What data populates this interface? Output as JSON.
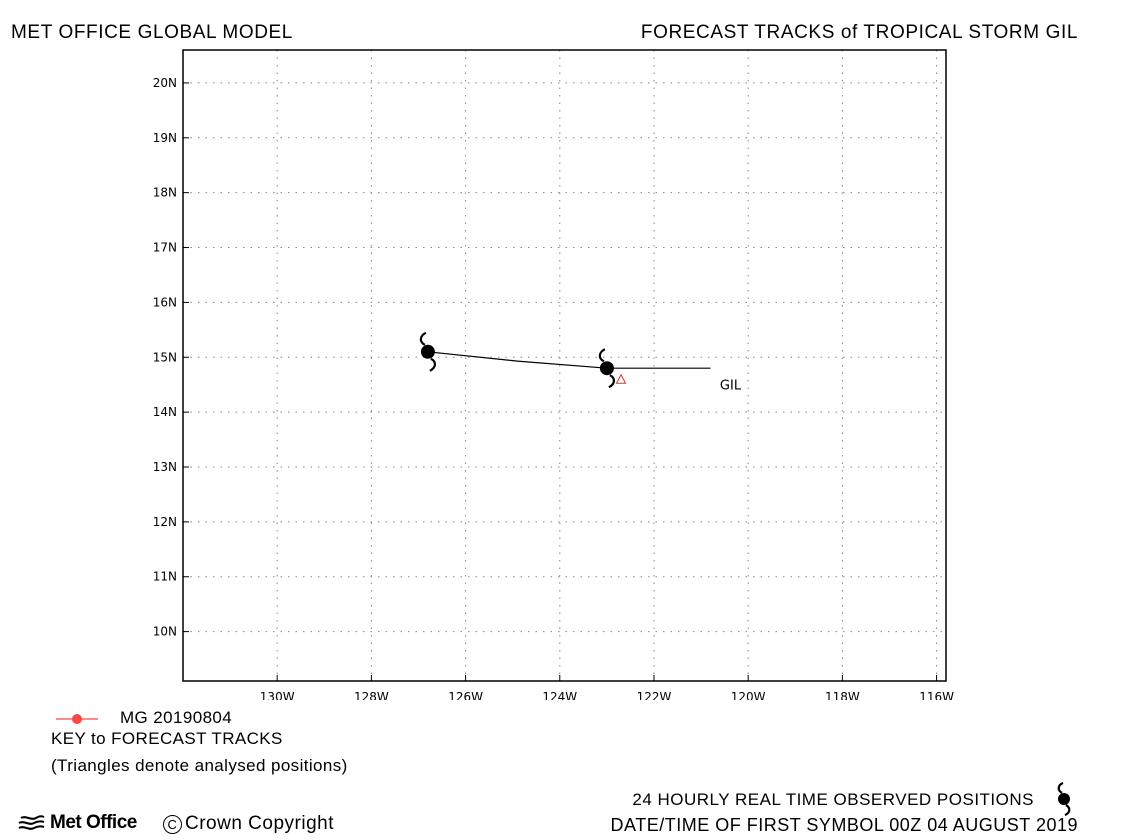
{
  "header": {
    "left_title": "MET OFFICE GLOBAL MODEL",
    "right_title": "FORECAST TRACKS of TROPICAL STORM GIL"
  },
  "chart_data": {
    "type": "line",
    "title": "FORECAST TRACKS of TROPICAL STORM GIL",
    "xlim": [
      -132,
      -115.8
    ],
    "ylim": [
      9.1,
      20.6
    ],
    "grid": true,
    "x_ticks": [
      "130W",
      "128W",
      "126W",
      "124W",
      "122W",
      "120W",
      "118W",
      "116W"
    ],
    "x_tick_values": [
      -130,
      -128,
      -126,
      -124,
      -122,
      -120,
      -118,
      -116
    ],
    "y_ticks": [
      "10N",
      "11N",
      "12N",
      "13N",
      "14N",
      "15N",
      "16N",
      "17N",
      "18N",
      "19N",
      "20N"
    ],
    "y_tick_values": [
      10,
      11,
      12,
      13,
      14,
      15,
      16,
      17,
      18,
      19,
      20
    ],
    "series": [
      {
        "name": "MG 20190804",
        "color": "#000000",
        "points": [
          {
            "lon": -126.8,
            "lat": 15.1
          },
          {
            "lon": -124.9,
            "lat": 14.93
          },
          {
            "lon": -123.0,
            "lat": 14.8
          },
          {
            "lon": -120.8,
            "lat": 14.8
          }
        ]
      }
    ],
    "observed_positions": [
      {
        "lon": -126.8,
        "lat": 15.1
      },
      {
        "lon": -123.0,
        "lat": 14.8
      }
    ],
    "analysed_positions": [
      {
        "lon": -122.7,
        "lat": 14.6
      }
    ],
    "annotations": [
      {
        "text": "GIL",
        "lon": -120.6,
        "lat": 14.5
      }
    ]
  },
  "legend": {
    "series_label": "MG 20190804",
    "series_color": "#ff4444",
    "title": "KEY to FORECAST TRACKS",
    "note": "(Triangles denote analysed positions)"
  },
  "footer": {
    "observed_text": "24 HOURLY REAL TIME OBSERVED POSITIONS",
    "date_text": "DATE/TIME OF FIRST SYMBOL 00Z 04 AUGUST 2019",
    "logo_text": "Met Office",
    "copyright_symbol": "C",
    "copyright_text": "Crown Copyright"
  },
  "colors": {
    "grid": "#888888",
    "track": "#000000",
    "triangle": "#e03030",
    "legend_marker": "#ff4444"
  },
  "icons": {
    "storm_symbol": "tropical-storm-icon",
    "logo": "met-office-logo-icon"
  }
}
